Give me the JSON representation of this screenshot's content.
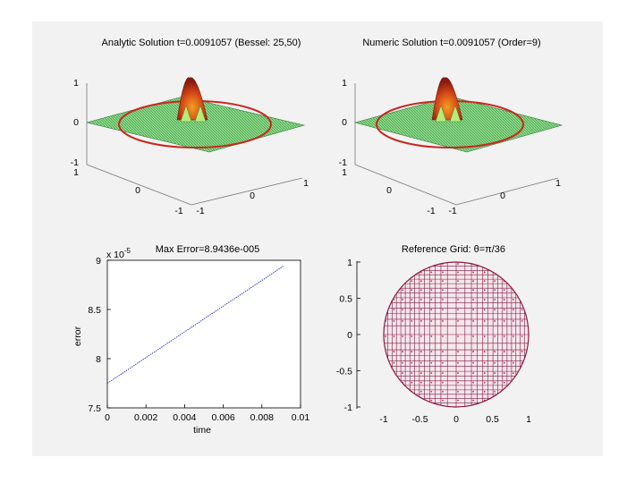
{
  "figure": {
    "background": "#f2f2f2",
    "panels": [
      {
        "id": "analytic",
        "title": "Analytic Solution t=0.0091057 (Bessel: 25,50)"
      },
      {
        "id": "numeric",
        "title": "Numeric Solution t=0.0091057 (Order=9)"
      },
      {
        "id": "error",
        "title": "Max Error=8.9436e-005"
      },
      {
        "id": "grid",
        "title_prefix": "Reference Grid: ",
        "title_symbol": "θ=π/36"
      }
    ]
  },
  "surface_axes": {
    "z_ticks": [
      "1",
      "0",
      "-1"
    ],
    "x_ticks": [
      "-1",
      "0",
      "1"
    ],
    "y_ticks": [
      "-1",
      "0",
      "1"
    ]
  },
  "colors": {
    "surface_low": "#1f9d3c",
    "surface_mid": "#9be48e",
    "surface_high": "#c43a12",
    "peak": "#f0a020",
    "rim": "#c8281e",
    "error_line": "#3340c8",
    "grid_line": "#7a1a40",
    "grid_dot": "#c0304c"
  },
  "chart_data": [
    {
      "type": "line",
      "title": "Max Error=8.9436e-005",
      "xlabel": "time",
      "ylabel": "error",
      "scale_label": "x 10",
      "scale_exponent": "-5",
      "xlim": [
        0,
        0.01
      ],
      "ylim": [
        7.5,
        9
      ],
      "x_ticks": [
        "0",
        "0.002",
        "0.004",
        "0.006",
        "0.008",
        "0.01"
      ],
      "y_ticks": [
        "9",
        "8.5",
        "8",
        "7.5"
      ],
      "series": [
        {
          "name": "error",
          "x": [
            0,
            0.0091057
          ],
          "y": [
            7.75,
            8.94
          ]
        }
      ]
    },
    {
      "type": "scatter",
      "title": "Reference Grid: θ=π/36",
      "xlim": [
        -1.2,
        1.2
      ],
      "ylim": [
        -1,
        1
      ],
      "x_ticks": [
        "-1",
        "-0.5",
        "0",
        "0.5",
        "1"
      ],
      "y_ticks": [
        "1",
        "0.5",
        "0",
        "-0.5",
        "-1"
      ],
      "domain": "unit disk"
    }
  ]
}
